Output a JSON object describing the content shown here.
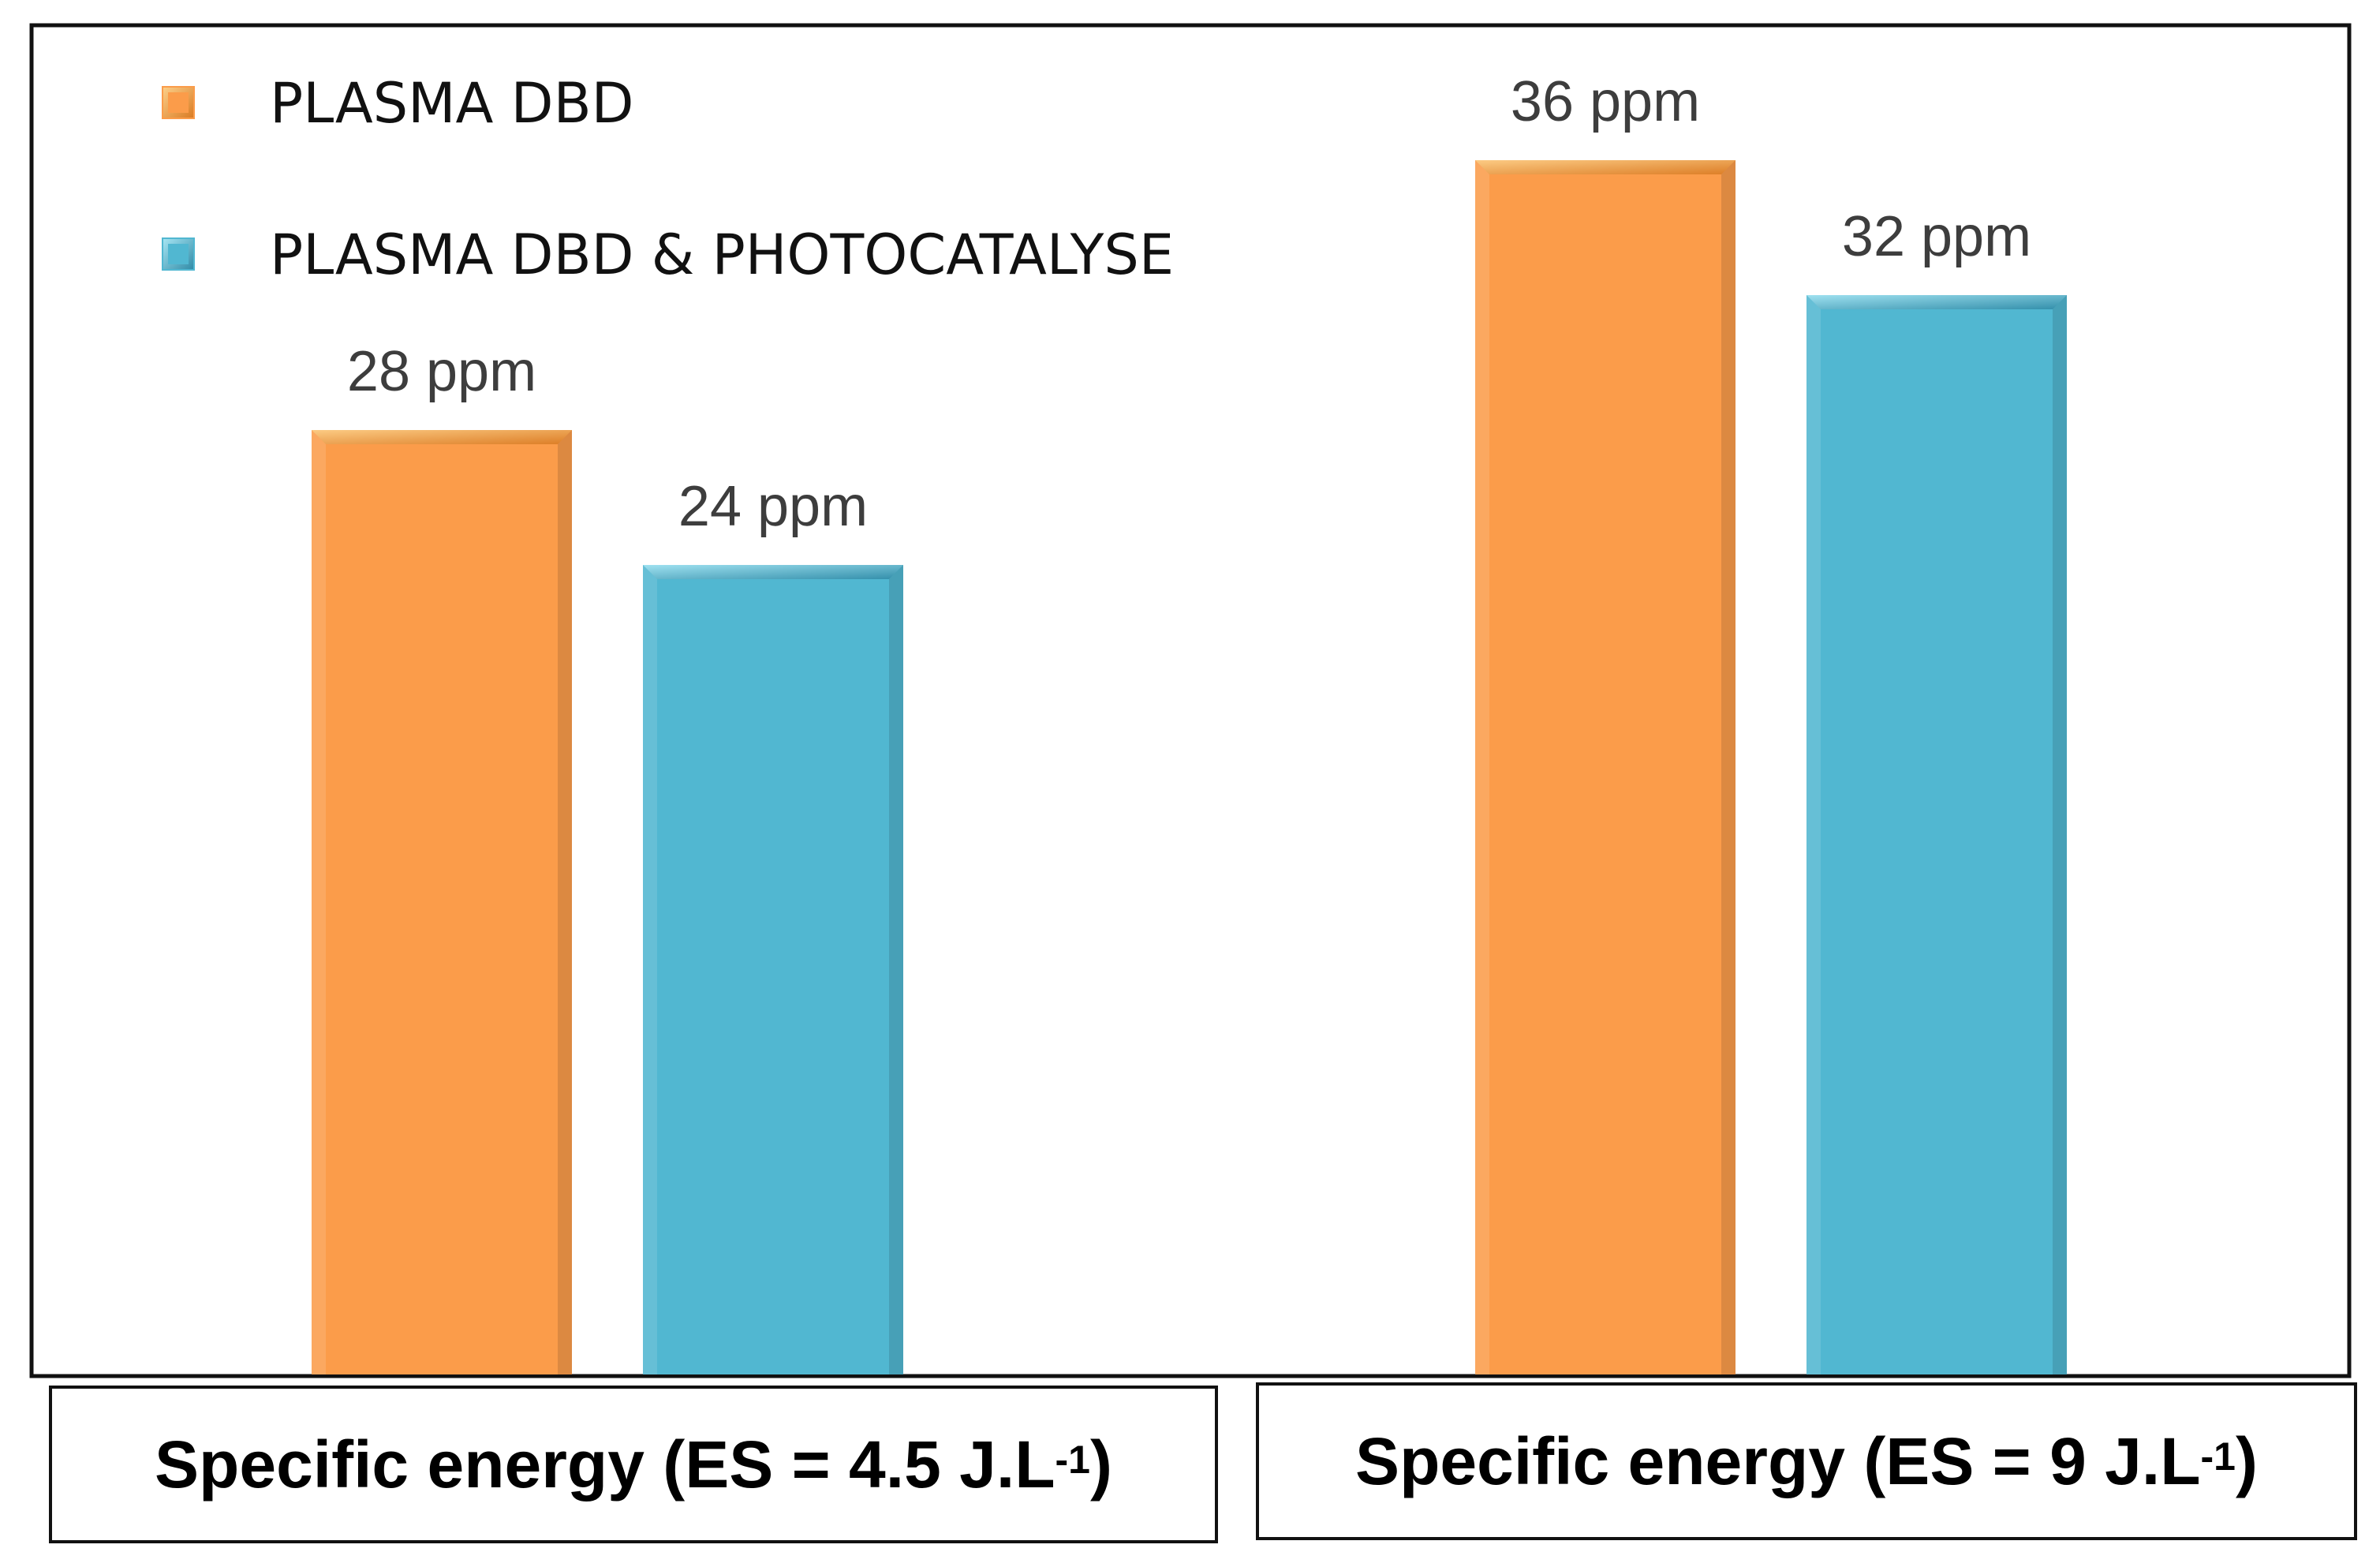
{
  "chart_data": {
    "type": "bar",
    "categories": [
      {
        "main": "Specific energy (ES = 4.5 J.L",
        "sup": "-1",
        "tail": ")"
      },
      {
        "main": "Specific energy (ES = 9 J.L",
        "sup": "-1",
        "tail": ")"
      }
    ],
    "series": [
      {
        "name": "PLASMA DBD",
        "color": "#fb9c4a",
        "values": [
          28,
          36
        ],
        "data_labels": [
          "28 ppm",
          "36 ppm"
        ]
      },
      {
        "name": "PLASMA DBD & PHOTOCATALYSE",
        "color": "#51b7d1",
        "values": [
          24,
          32
        ],
        "data_labels": [
          "24 ppm",
          "32 ppm"
        ]
      }
    ],
    "ylim": [
      0,
      40
    ],
    "title": "",
    "xlabel": "",
    "ylabel": "",
    "grid": false,
    "legend_position": "top-left"
  }
}
